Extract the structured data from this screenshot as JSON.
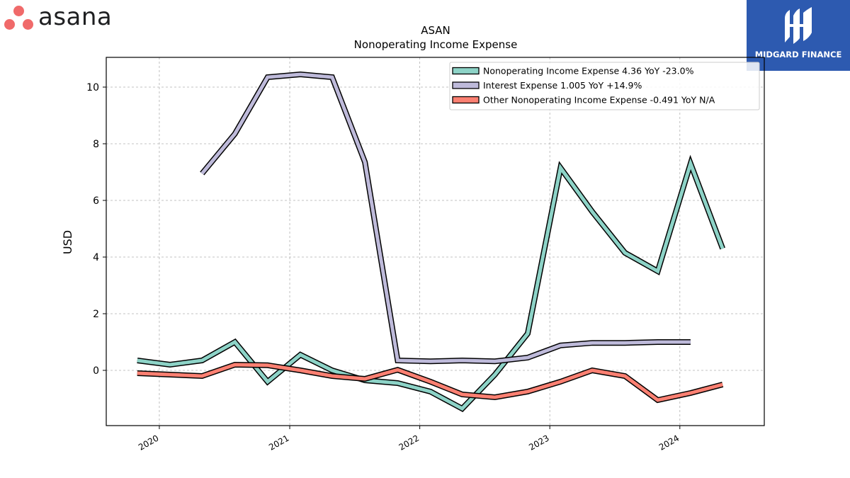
{
  "branding": {
    "left_logo_text": "asana",
    "right_logo_text": "MIDGARD FINANCE",
    "asana_color": "#f06a6a",
    "midgard_color": "#2d5ab0"
  },
  "chart_data": {
    "type": "line",
    "title": "ASAN",
    "subtitle": "Nonoperating Income Expense",
    "xlabel": "",
    "ylabel": "USD",
    "ylim": [
      -1.95,
      11.05
    ],
    "xlim": [
      "2019-08-05",
      "2024-08-25"
    ],
    "yticks": [
      0,
      2,
      4,
      6,
      8,
      10
    ],
    "ytick_labels": [
      "0",
      "2",
      "4",
      "6",
      "8",
      "10"
    ],
    "xticks": [
      "2020-01-01",
      "2021-01-01",
      "2022-01-01",
      "2023-01-01",
      "2024-01-01"
    ],
    "xtick_labels": [
      "2020",
      "2021",
      "2022",
      "2023",
      "2024"
    ],
    "grid": true,
    "legend_position": "top-right",
    "series": [
      {
        "name": "Nonoperating Income Expense  4.36 YoY -23.0%",
        "color": "#8dd3c7",
        "points": [
          [
            "2019-10-31",
            0.35
          ],
          [
            "2020-01-31",
            0.2
          ],
          [
            "2020-04-30",
            0.35
          ],
          [
            "2020-07-31",
            1.0
          ],
          [
            "2020-10-31",
            -0.4
          ],
          [
            "2021-01-31",
            0.55
          ],
          [
            "2021-04-30",
            0.0
          ],
          [
            "2021-07-31",
            -0.35
          ],
          [
            "2021-10-31",
            -0.45
          ],
          [
            "2022-01-31",
            -0.75
          ],
          [
            "2022-04-30",
            -1.35
          ],
          [
            "2022-07-31",
            -0.15
          ],
          [
            "2022-10-31",
            1.3
          ],
          [
            "2023-01-31",
            7.15
          ],
          [
            "2023-04-30",
            5.6
          ],
          [
            "2023-07-31",
            4.15
          ],
          [
            "2023-10-31",
            3.5
          ],
          [
            "2024-01-31",
            7.3
          ],
          [
            "2024-04-30",
            4.3
          ]
        ]
      },
      {
        "name": "Interest Expense  1.005 YoY +14.9%",
        "color": "#bebada",
        "points": [
          [
            "2020-04-30",
            6.95
          ],
          [
            "2020-07-31",
            8.35
          ],
          [
            "2020-10-31",
            10.35
          ],
          [
            "2021-01-31",
            10.45
          ],
          [
            "2021-04-30",
            10.35
          ],
          [
            "2021-07-31",
            7.35
          ],
          [
            "2021-10-31",
            0.35
          ],
          [
            "2022-01-31",
            0.32
          ],
          [
            "2022-04-30",
            0.35
          ],
          [
            "2022-07-31",
            0.32
          ],
          [
            "2022-10-31",
            0.45
          ],
          [
            "2023-01-31",
            0.88
          ],
          [
            "2023-04-30",
            0.97
          ],
          [
            "2023-07-31",
            0.97
          ],
          [
            "2023-10-31",
            1.0
          ],
          [
            "2024-01-31",
            1.0
          ]
        ]
      },
      {
        "name": "Other Nonoperating Income Expense  -0.491 YoY N/A",
        "color": "#fb8072",
        "points": [
          [
            "2019-10-31",
            -0.1
          ],
          [
            "2020-01-31",
            -0.15
          ],
          [
            "2020-04-30",
            -0.2
          ],
          [
            "2020-07-31",
            0.2
          ],
          [
            "2020-10-31",
            0.18
          ],
          [
            "2021-01-31",
            0.0
          ],
          [
            "2021-04-30",
            -0.2
          ],
          [
            "2021-07-31",
            -0.3
          ],
          [
            "2021-10-31",
            0.02
          ],
          [
            "2022-01-31",
            -0.4
          ],
          [
            "2022-04-30",
            -0.85
          ],
          [
            "2022-07-31",
            -0.95
          ],
          [
            "2022-10-31",
            -0.75
          ],
          [
            "2023-01-31",
            -0.4
          ],
          [
            "2023-04-30",
            0.0
          ],
          [
            "2023-07-31",
            -0.2
          ],
          [
            "2023-10-31",
            -1.05
          ],
          [
            "2024-01-31",
            -0.8
          ],
          [
            "2024-04-30",
            -0.5
          ]
        ]
      }
    ]
  }
}
